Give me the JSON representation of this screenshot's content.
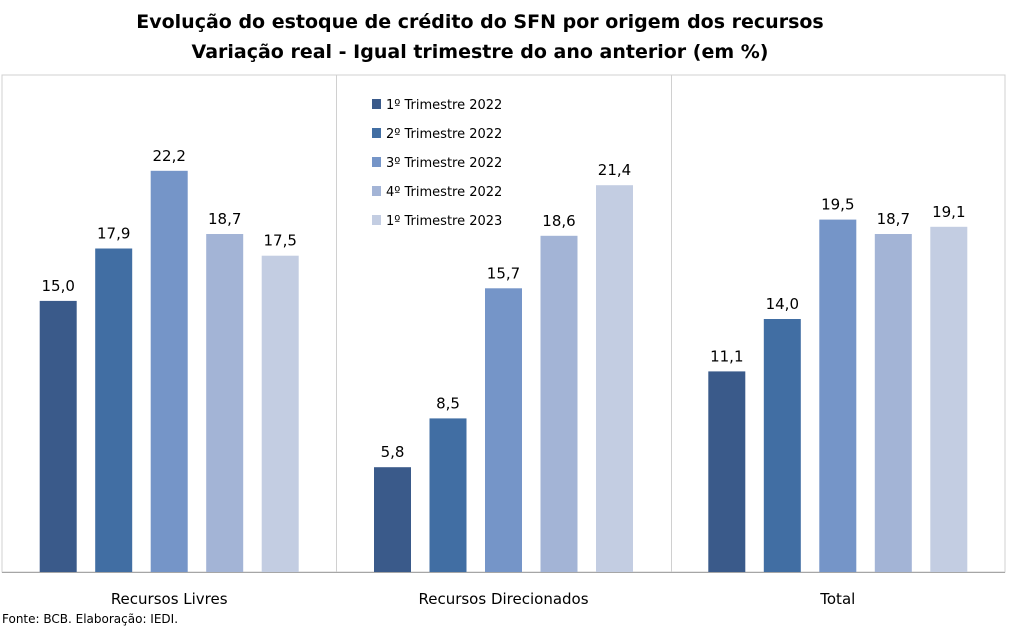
{
  "chart_data": {
    "type": "bar",
    "title": "Evolução do estoque de crédito do SFN por origem dos recursos",
    "subtitle": "Variação real - Igual trimestre do ano anterior (em %)",
    "categories": [
      "Recursos Livres",
      "Recursos Direcionados",
      "Total"
    ],
    "series": [
      {
        "name": "1º Trimestre 2022",
        "values": [
          15.0,
          5.8,
          11.1
        ],
        "labels": [
          "15,0",
          "5,8",
          "11,1"
        ],
        "color": "#3a5a8a"
      },
      {
        "name": "2º Trimestre 2022",
        "values": [
          17.9,
          8.5,
          14.0
        ],
        "labels": [
          "17,9",
          "8,5",
          "14,0"
        ],
        "color": "#416ea3"
      },
      {
        "name": "3º Trimestre 2022",
        "values": [
          22.2,
          15.7,
          19.5
        ],
        "labels": [
          "22,2",
          "15,7",
          "19,5"
        ],
        "color": "#7595c8"
      },
      {
        "name": "4º Trimestre 2022",
        "values": [
          18.7,
          18.6,
          18.7
        ],
        "labels": [
          "18,7",
          "18,6",
          "18,7"
        ],
        "color": "#a3b4d6"
      },
      {
        "name": "1º Trimestre 2023",
        "values": [
          17.5,
          21.4,
          19.1
        ],
        "labels": [
          "17,5",
          "21,4",
          "19,1"
        ],
        "color": "#c3cde2"
      }
    ],
    "ylim": [
      0,
      27.5
    ],
    "grid": false,
    "legend_position": "top-center"
  },
  "source_note": "Fonte: BCB. Elaboração: IEDI."
}
